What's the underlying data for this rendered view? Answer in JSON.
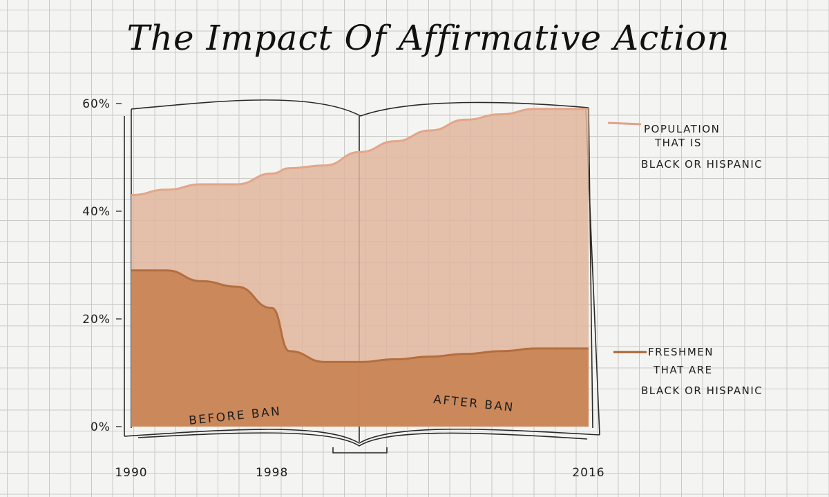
{
  "chart_data": {
    "type": "area",
    "title": "The Impact Of Affirmative Action",
    "x_ticks": [
      "1990",
      "1998",
      "2016"
    ],
    "y_ticks": [
      "60%",
      "40%",
      "20%",
      "0%"
    ],
    "ylim": [
      0,
      60
    ],
    "grid": true,
    "series": [
      {
        "name": "POPULATION THAT IS BLACK OR HISPANIC",
        "color": "#e0b59d",
        "x": [
          1990,
          1992,
          1994,
          1996,
          1998,
          1999,
          2001,
          2003,
          2005,
          2007,
          2009,
          2011,
          2013,
          2016
        ],
        "values": [
          43,
          44,
          45,
          45,
          47,
          48,
          48.5,
          51,
          53,
          55,
          57,
          58,
          59,
          59
        ]
      },
      {
        "name": "FRESHMEN THAT ARE BLACK OR HISPANIC",
        "color": "#c98556",
        "x": [
          1990,
          1992,
          1994,
          1996,
          1998,
          1999,
          2001,
          2003,
          2005,
          2007,
          2009,
          2011,
          2013,
          2016
        ],
        "values": [
          29,
          29,
          27,
          26,
          22,
          14,
          12,
          12,
          12.5,
          13,
          13.5,
          14,
          14.5,
          14.5
        ]
      }
    ],
    "annotations": [
      "BEFORE BAN",
      "AFTER BAN"
    ]
  },
  "legend": {
    "population": [
      "POPULATION",
      "THAT IS",
      "BLACK OR HISPANIC"
    ],
    "freshmen": [
      "FRESHMEN",
      "THAT ARE",
      "BLACK OR HISPANIC"
    ]
  }
}
